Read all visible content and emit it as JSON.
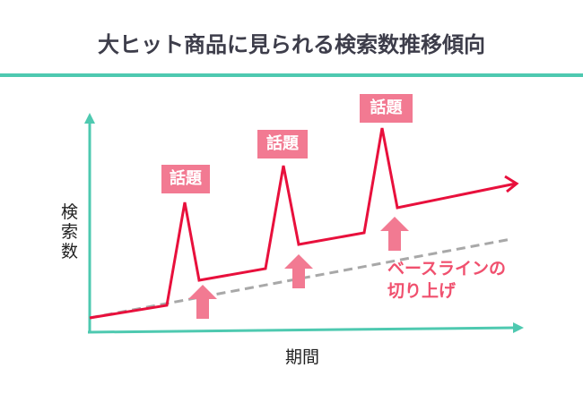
{
  "title": "大ヒット商品に見られる検索数推移傾向",
  "y_axis_label": "検索数",
  "x_axis_label": "期間",
  "spike_labels": [
    "話題",
    "話題",
    "話題"
  ],
  "baseline_note": {
    "line1": "ベースラインの",
    "line2": "切り上げ"
  },
  "colors": {
    "axis": "#4ec9b0",
    "trend": "#e8103c",
    "baseline": "#a8a8a8",
    "highlight": "#f27a92"
  }
}
